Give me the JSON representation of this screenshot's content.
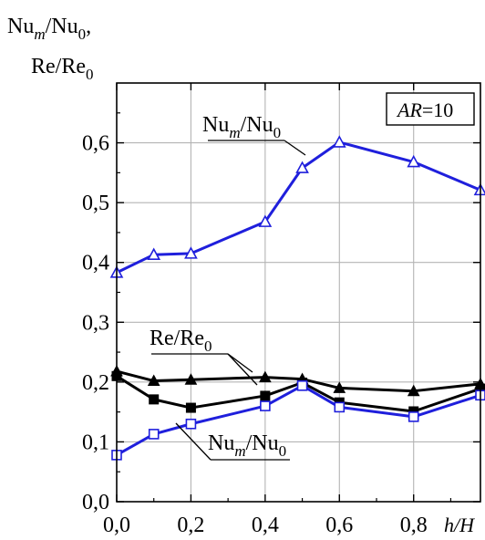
{
  "chart_data": {
    "type": "line",
    "y_axis_label_main": "Nu",
    "y_axis_label_sub": "m",
    "y_axis_label_rest": "/Nu",
    "y_axis_label_sub2": "0",
    "y_axis_label_tail": ",",
    "y_axis_label_line2_main": "Re/Re",
    "y_axis_label_line2_sub": "0",
    "x_axis_label": "h/H",
    "xlim": [
      0.0,
      0.98
    ],
    "ylim": [
      0.0,
      0.7
    ],
    "x_ticks": [
      "0,0",
      "0,2",
      "0,4",
      "0,6",
      "0,8"
    ],
    "x_tick_values": [
      0.0,
      0.2,
      0.4,
      0.6,
      0.8
    ],
    "y_ticks": [
      "0,0",
      "0,1",
      "0,2",
      "0,3",
      "0,4",
      "0,5",
      "0,6"
    ],
    "y_tick_values": [
      0.0,
      0.1,
      0.2,
      0.3,
      0.4,
      0.5,
      0.6
    ],
    "grid": true,
    "legend_box": {
      "italic_part": "AR",
      "rest": "=10"
    },
    "annotations": [
      {
        "main": "Nu",
        "sub": "m",
        "rest": "/Nu",
        "sub2": "0"
      },
      {
        "main": "Re/Re",
        "sub": "0",
        "rest": "",
        "sub2": ""
      },
      {
        "main": "Nu",
        "sub": "m",
        "rest": "/Nu",
        "sub2": "0"
      }
    ],
    "series": [
      {
        "color": "#1f1fdc",
        "marker": "open-triangle",
        "x": [
          0.0,
          0.1,
          0.2,
          0.4,
          0.5,
          0.6,
          0.8,
          0.98
        ],
        "y": [
          0.383,
          0.413,
          0.415,
          0.468,
          0.558,
          0.601,
          0.568,
          0.521
        ]
      },
      {
        "color": "#000000",
        "marker": "filled-triangle",
        "x": [
          0.0,
          0.1,
          0.2,
          0.4,
          0.5,
          0.6,
          0.8,
          0.98
        ],
        "y": [
          0.218,
          0.202,
          0.204,
          0.208,
          0.205,
          0.19,
          0.185,
          0.197
        ]
      },
      {
        "color": "#000000",
        "marker": "filled-square",
        "x": [
          0.0,
          0.1,
          0.2,
          0.4,
          0.5,
          0.6,
          0.8,
          0.98
        ],
        "y": [
          0.21,
          0.171,
          0.157,
          0.177,
          0.199,
          0.166,
          0.151,
          0.189
        ]
      },
      {
        "color": "#1f1fdc",
        "marker": "open-square",
        "x": [
          0.0,
          0.1,
          0.2,
          0.4,
          0.5,
          0.6,
          0.8,
          0.98
        ],
        "y": [
          0.078,
          0.113,
          0.13,
          0.16,
          0.194,
          0.158,
          0.142,
          0.178
        ]
      }
    ]
  }
}
